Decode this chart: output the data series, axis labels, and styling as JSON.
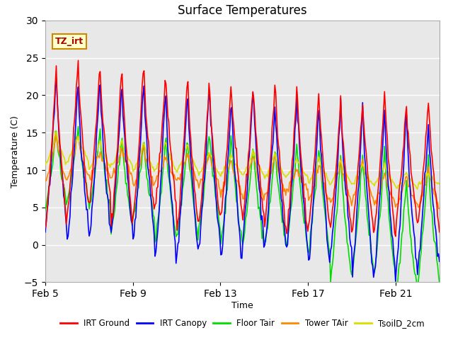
{
  "title": "Surface Temperatures",
  "xlabel": "Time",
  "ylabel": "Temperature (C)",
  "ylim": [
    -5,
    30
  ],
  "yticks": [
    -5,
    0,
    5,
    10,
    15,
    20,
    25,
    30
  ],
  "background_color": "#ffffff",
  "plot_bg_color": "#e8e8e8",
  "series_colors": {
    "IRT Ground": "#ff0000",
    "IRT Canopy": "#0000ff",
    "Floor Tair": "#00dd00",
    "Tower TAir": "#ff8800",
    "TsoilD_2cm": "#dddd00"
  },
  "xtick_labels": [
    "Feb 5",
    "Feb 9",
    "Feb 13",
    "Feb 17",
    "Feb 21"
  ],
  "xtick_positions": [
    0,
    4,
    8,
    12,
    16
  ],
  "label_box_text": "TZ_irt",
  "label_box_facecolor": "#ffffcc",
  "label_box_edgecolor": "#cc8800",
  "line_width": 1.2
}
